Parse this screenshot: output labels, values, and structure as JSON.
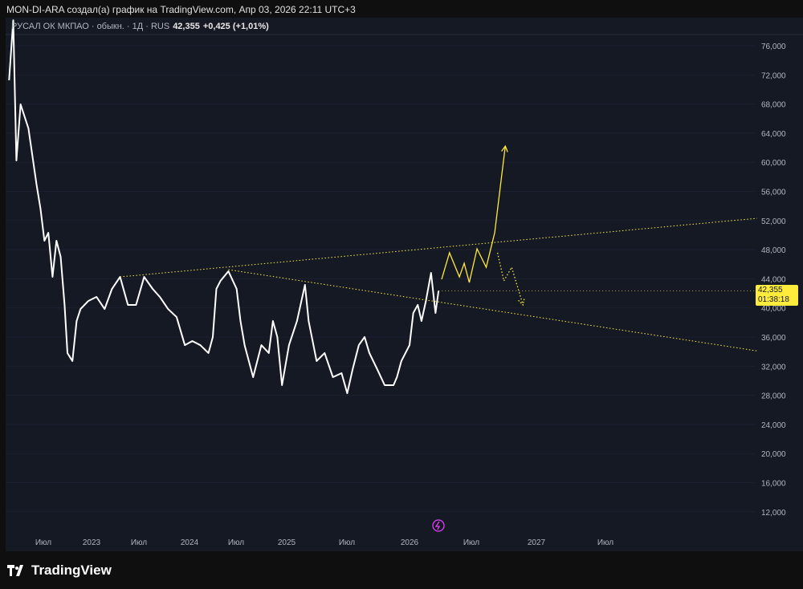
{
  "header": {
    "caption": "MON-DI-ARA создал(а) график на TradingView.com, Апр 03, 2026 22:11 UTC+3"
  },
  "legend": {
    "symbol": "РУСАЛ ОК МКПАО · обыкн. · 1Д · RUS",
    "price": "42,355",
    "change": "+0,425 (+1,01%)"
  },
  "price_label": {
    "price": "42,355",
    "countdown": "01:38:18"
  },
  "brand": {
    "name": "TradingView"
  },
  "colors": {
    "background": "#151924",
    "line": "#ffffff",
    "annotation": "#ffeb3b",
    "label": "#ffeb3b"
  },
  "chart_data": {
    "type": "line",
    "title": "РУСАЛ ОК МКПАО · обыкн. · 1Д · RUS",
    "ylim": [
      10000,
      80000
    ],
    "y_ticks": [
      "76,000",
      "72,000",
      "68,000",
      "64,000",
      "60,000",
      "56,000",
      "52,000",
      "48,000",
      "44,000",
      "40,000",
      "36,000",
      "32,000",
      "28,000",
      "24,000",
      "20,000",
      "16,000",
      "12,000"
    ],
    "y_tick_values": [
      76000,
      72000,
      68000,
      64000,
      60000,
      56000,
      52000,
      48000,
      44000,
      40000,
      36000,
      32000,
      28000,
      24000,
      20000,
      16000,
      12000
    ],
    "x_ticks": [
      {
        "label": "Июл",
        "date": "2022-07-01"
      },
      {
        "label": "2023",
        "date": "2023-01-01"
      },
      {
        "label": "Июл",
        "date": "2023-07-01"
      },
      {
        "label": "2024",
        "date": "2024-01-01"
      },
      {
        "label": "Июл",
        "date": "2024-07-01"
      },
      {
        "label": "2025",
        "date": "2025-01-01"
      },
      {
        "label": "Июл",
        "date": "2025-07-01"
      },
      {
        "label": "2026",
        "date": "2026-01-01"
      },
      {
        "label": "Июл",
        "date": "2026-07-01"
      },
      {
        "label": "2027",
        "date": "2027-01-01"
      },
      {
        "label": "Июл",
        "date": "2027-07-01"
      }
    ],
    "series": [
      {
        "x": [
          "2022-02-20",
          "2022-03-08",
          "2022-03-20",
          "2022-04-05",
          "2022-05-05",
          "2022-06-05",
          "2022-06-20",
          "2022-07-05",
          "2022-07-20",
          "2022-08-05",
          "2022-08-20",
          "2022-09-05",
          "2022-09-20",
          "2022-10-01",
          "2022-10-20",
          "2022-11-05",
          "2022-11-20",
          "2022-12-20",
          "2023-01-20",
          "2023-02-20",
          "2023-03-20",
          "2023-04-20",
          "2023-05-20",
          "2023-06-20",
          "2023-07-20",
          "2023-08-20",
          "2023-09-15",
          "2023-10-15",
          "2023-11-15",
          "2023-12-15",
          "2024-01-12",
          "2024-02-12",
          "2024-03-15",
          "2024-04-01",
          "2024-04-15",
          "2024-05-01",
          "2024-06-01",
          "2024-07-03",
          "2024-07-17",
          "2024-08-01",
          "2024-09-01",
          "2024-10-01",
          "2024-10-28",
          "2024-11-12",
          "2024-11-28",
          "2024-12-15",
          "2025-01-08",
          "2025-02-01",
          "2025-02-25",
          "2025-03-08",
          "2025-04-01",
          "2025-04-25",
          "2025-05-20",
          "2025-06-15",
          "2025-07-02",
          "2025-07-18",
          "2025-08-05",
          "2025-08-22",
          "2025-09-05",
          "2025-09-28",
          "2025-10-20",
          "2025-11-15",
          "2025-11-25",
          "2025-12-08",
          "2026-01-01",
          "2026-01-12",
          "2026-01-25",
          "2026-02-05",
          "2026-02-18",
          "2026-03-05",
          "2026-03-18",
          "2026-03-27"
        ],
        "y": [
          71260,
          79500,
          60240,
          67950,
          64650,
          56930,
          53630,
          49220,
          50320,
          44260,
          49220,
          47020,
          40410,
          33800,
          32700,
          38200,
          39850,
          40960,
          41510,
          39850,
          42610,
          44260,
          40410,
          40410,
          44260,
          42610,
          41510,
          39850,
          38750,
          34890,
          35450,
          34890,
          33800,
          36000,
          42610,
          43710,
          45030,
          42610,
          38200,
          34890,
          30490,
          34890,
          33800,
          38200,
          36000,
          29390,
          34890,
          38200,
          43160,
          38200,
          32700,
          33800,
          30490,
          31040,
          28280,
          31590,
          34890,
          36000,
          33800,
          31590,
          29390,
          29390,
          30490,
          32700,
          34890,
          39300,
          40410,
          38200,
          40960,
          44810,
          39300,
          42355
        ]
      }
    ],
    "annotations": [
      {
        "type": "trendline",
        "style": "dotted",
        "points": [
          [
            "2023-04-20",
            44260
          ],
          [
            "2028-08-01",
            52300
          ]
        ]
      },
      {
        "type": "trendline",
        "style": "dotted",
        "points": [
          [
            "2024-06-01",
            45250
          ],
          [
            "2028-08-01",
            34100
          ]
        ]
      },
      {
        "type": "path-arrow",
        "style": "solid",
        "points": [
          [
            "2026-04-05",
            43930
          ],
          [
            "2026-04-28",
            47570
          ],
          [
            "2026-05-27",
            44260
          ],
          [
            "2026-06-10",
            46130
          ],
          [
            "2026-06-25",
            43490
          ],
          [
            "2026-07-17",
            48120
          ],
          [
            "2026-08-12",
            45580
          ],
          [
            "2026-09-05",
            50320
          ],
          [
            "2026-10-05",
            62220
          ]
        ]
      },
      {
        "type": "path-arrow",
        "style": "dotted",
        "points": [
          [
            "2026-09-13",
            47570
          ],
          [
            "2026-10-01",
            43710
          ],
          [
            "2026-10-23",
            45580
          ],
          [
            "2026-11-24",
            40410
          ]
        ]
      }
    ]
  }
}
